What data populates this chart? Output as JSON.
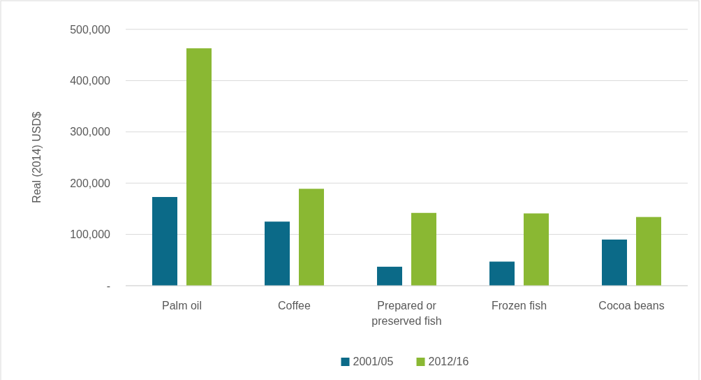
{
  "chart_data": {
    "type": "bar",
    "ylabel": "Real (2014) USD$",
    "categories": [
      "Palm oil",
      "Coffee",
      "Prepared or preserved fish",
      "Frozen fish",
      "Cocoa beans"
    ],
    "series": [
      {
        "name": "2001/05",
        "color": "#0b6a88",
        "values": [
          173000,
          125000,
          37000,
          47000,
          90000
        ]
      },
      {
        "name": "2012/16",
        "color": "#8ab833",
        "values": [
          463000,
          189000,
          142000,
          141000,
          134000
        ]
      }
    ],
    "ylim": [
      0,
      500000
    ],
    "yticks": [
      {
        "value": 0,
        "label": "-"
      },
      {
        "value": 100000,
        "label": "100,000"
      },
      {
        "value": 200000,
        "label": "200,000"
      },
      {
        "value": 300000,
        "label": "300,000"
      },
      {
        "value": 400000,
        "label": "400,000"
      },
      {
        "value": 500000,
        "label": "500,000"
      }
    ],
    "grid": "y",
    "legend": "bottom"
  }
}
